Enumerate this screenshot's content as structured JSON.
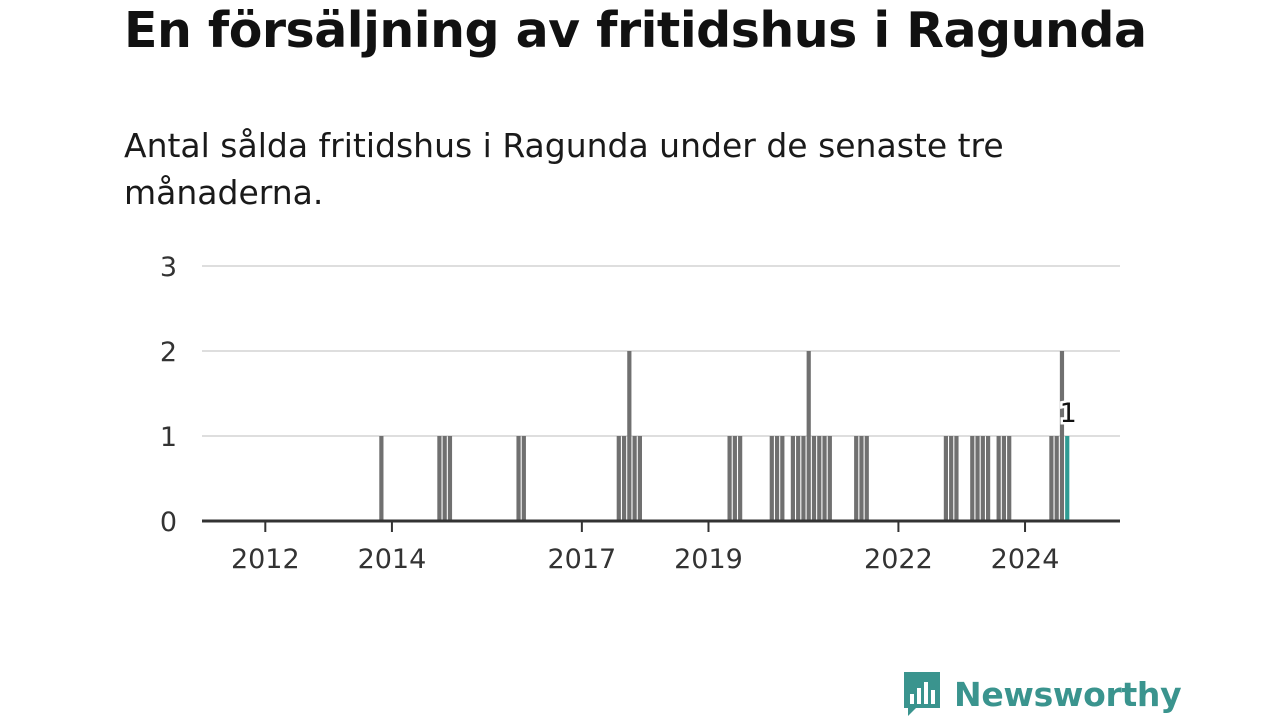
{
  "chart_data": {
    "type": "bar",
    "title": "En försäljning av fritidshus i Ragunda",
    "subtitle": "Antal sålda fritidshus i Ragunda under de senaste tre månaderna.",
    "ylim": [
      0,
      3
    ],
    "yticks": [
      0,
      1,
      2,
      3
    ],
    "xticks": [
      "2012",
      "2014",
      "2017",
      "2019",
      "2022",
      "2024"
    ],
    "grid": true,
    "bar_color": "#707070",
    "highlight_color": "#2f9b93",
    "x_start": "2011-01",
    "x_end": "2025-07",
    "series": [
      {
        "x": [
          "2013-11",
          "2014-10",
          "2014-11",
          "2014-12",
          "2016-01",
          "2016-02",
          "2017-08",
          "2017-09",
          "2017-10",
          "2017-11",
          "2017-12",
          "2019-05",
          "2019-06",
          "2019-07",
          "2020-01",
          "2020-02",
          "2020-03",
          "2020-05",
          "2020-06",
          "2020-07",
          "2020-08",
          "2020-09",
          "2020-10",
          "2020-11",
          "2020-12",
          "2021-05",
          "2021-06",
          "2021-07",
          "2022-10",
          "2022-11",
          "2022-12",
          "2023-03",
          "2023-04",
          "2023-05",
          "2023-06",
          "2023-08",
          "2023-09",
          "2023-10",
          "2024-06",
          "2024-07",
          "2024-08",
          "2024-09"
        ],
        "values": [
          1,
          1,
          1,
          1,
          1,
          1,
          1,
          1,
          2,
          1,
          1,
          1,
          1,
          1,
          1,
          1,
          1,
          1,
          1,
          1,
          2,
          1,
          1,
          1,
          1,
          1,
          1,
          1,
          1,
          1,
          1,
          1,
          1,
          1,
          1,
          1,
          1,
          1,
          1,
          1,
          2,
          1
        ]
      }
    ],
    "highlight_index": 41,
    "data_label": "1"
  },
  "logo": {
    "text": "Newsworthy",
    "color": "#3a948e"
  }
}
